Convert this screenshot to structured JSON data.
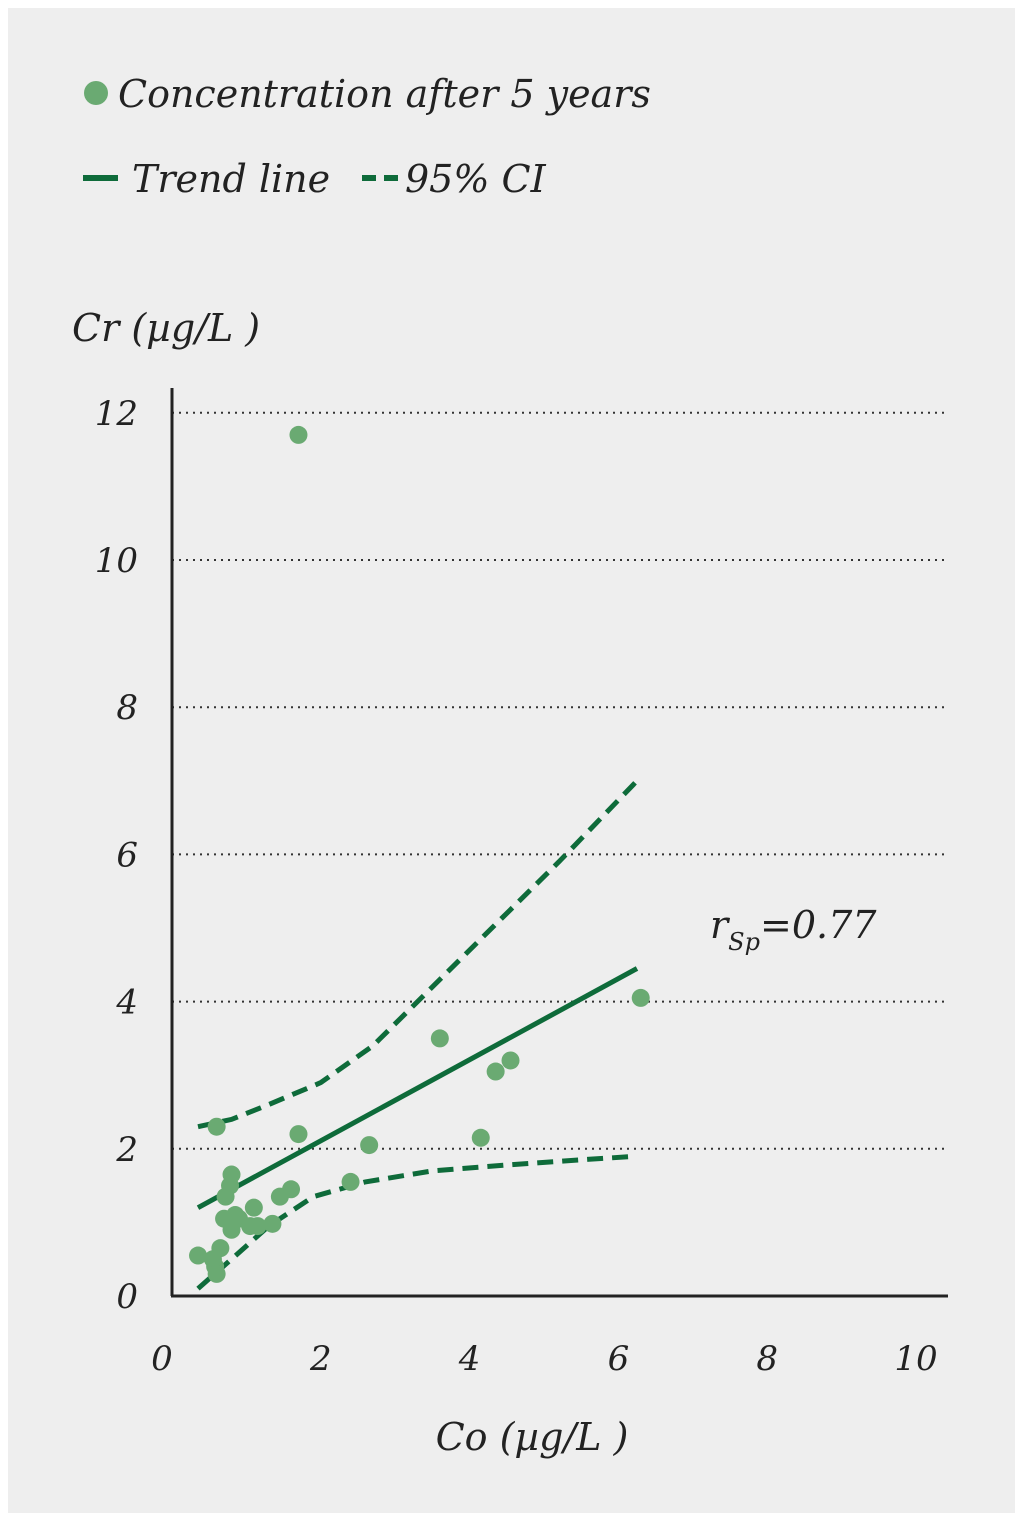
{
  "chart_data": {
    "type": "scatter",
    "legend": {
      "placement": "top-left",
      "items": [
        {
          "label": "Concentration after 5 years",
          "symbol": "dot"
        },
        {
          "label": "Trend line",
          "symbol": "solid-line"
        },
        {
          "label": "95% CI",
          "symbol": "dashed-line"
        }
      ]
    },
    "xlabel": "Co (µg/L )",
    "ylabel": "Cr (µg/L )",
    "xlim": [
      0,
      10.5
    ],
    "ylim": [
      0,
      12
    ],
    "xticks": [
      0,
      2,
      4,
      6,
      8,
      10
    ],
    "yticks": [
      0,
      2,
      4,
      6,
      8,
      10,
      12
    ],
    "grid": "horizontal-dotted",
    "annotation": {
      "text_main": "r",
      "text_sub": "Sp",
      "text_value": "=0.77"
    },
    "points": [
      {
        "x": 1.7,
        "y": 11.7
      },
      {
        "x": 0.6,
        "y": 2.3
      },
      {
        "x": 1.7,
        "y": 2.2
      },
      {
        "x": 2.65,
        "y": 2.05
      },
      {
        "x": 3.6,
        "y": 3.5
      },
      {
        "x": 4.15,
        "y": 2.15
      },
      {
        "x": 4.35,
        "y": 3.05
      },
      {
        "x": 4.55,
        "y": 3.2
      },
      {
        "x": 6.3,
        "y": 4.05
      },
      {
        "x": 2.4,
        "y": 1.55
      },
      {
        "x": 1.6,
        "y": 1.45
      },
      {
        "x": 1.45,
        "y": 1.35
      },
      {
        "x": 0.8,
        "y": 1.65
      },
      {
        "x": 0.78,
        "y": 1.5
      },
      {
        "x": 0.72,
        "y": 1.35
      },
      {
        "x": 1.1,
        "y": 1.2
      },
      {
        "x": 0.7,
        "y": 1.05
      },
      {
        "x": 0.9,
        "y": 1.05
      },
      {
        "x": 1.05,
        "y": 0.95
      },
      {
        "x": 1.15,
        "y": 0.95
      },
      {
        "x": 0.8,
        "y": 0.9
      },
      {
        "x": 1.35,
        "y": 0.98
      },
      {
        "x": 0.85,
        "y": 1.1
      },
      {
        "x": 0.35,
        "y": 0.55
      },
      {
        "x": 0.55,
        "y": 0.5
      },
      {
        "x": 0.65,
        "y": 0.65
      },
      {
        "x": 0.58,
        "y": 0.4
      },
      {
        "x": 0.6,
        "y": 0.3
      }
    ],
    "trend_line": [
      {
        "x": 0.35,
        "y": 1.2
      },
      {
        "x": 6.25,
        "y": 4.45
      }
    ],
    "ci_upper": [
      {
        "x": 0.35,
        "y": 2.3
      },
      {
        "x": 0.8,
        "y": 2.4
      },
      {
        "x": 1.3,
        "y": 2.6
      },
      {
        "x": 2.0,
        "y": 2.9
      },
      {
        "x": 2.7,
        "y": 3.4
      },
      {
        "x": 3.5,
        "y": 4.2
      },
      {
        "x": 4.3,
        "y": 5.0
      },
      {
        "x": 5.2,
        "y": 5.9
      },
      {
        "x": 6.25,
        "y": 7.0
      }
    ],
    "ci_lower": [
      {
        "x": 0.35,
        "y": 0.1
      },
      {
        "x": 0.8,
        "y": 0.5
      },
      {
        "x": 1.3,
        "y": 0.95
      },
      {
        "x": 1.9,
        "y": 1.35
      },
      {
        "x": 2.6,
        "y": 1.55
      },
      {
        "x": 3.5,
        "y": 1.7
      },
      {
        "x": 4.5,
        "y": 1.78
      },
      {
        "x": 5.5,
        "y": 1.85
      },
      {
        "x": 6.25,
        "y": 1.9
      }
    ],
    "colors": {
      "point": "#6aaa72",
      "line": "#0e6b3a",
      "grid": "#333333",
      "axis": "#222222"
    }
  }
}
